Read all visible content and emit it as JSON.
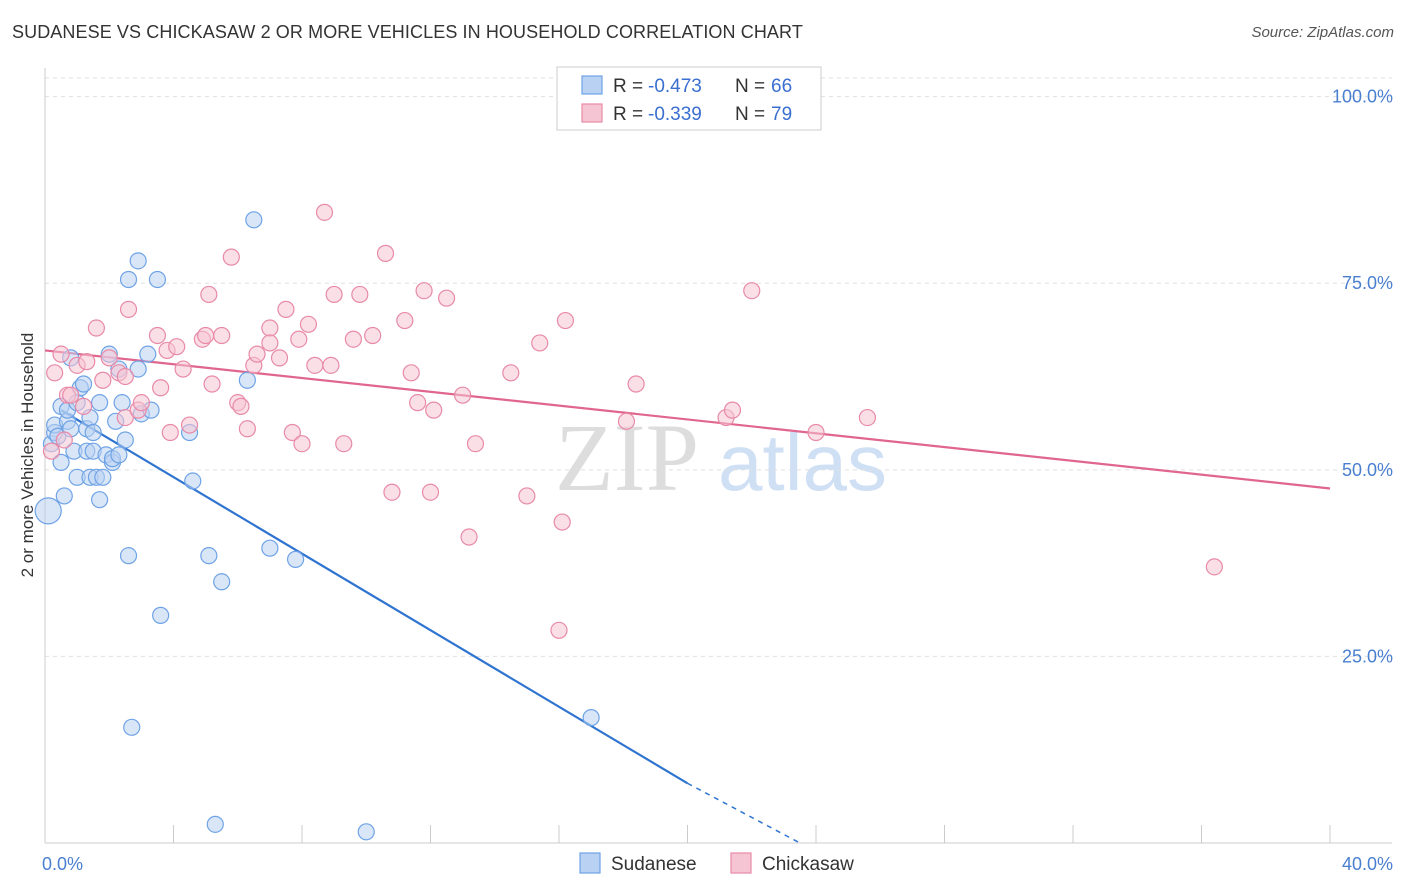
{
  "title": "SUDANESE VS CHICKASAW 2 OR MORE VEHICLES IN HOUSEHOLD CORRELATION CHART",
  "source": "Source: ZipAtlas.com",
  "watermark": {
    "zip": "ZIP",
    "atlas": "atlas"
  },
  "chart_data": {
    "type": "scatter",
    "title": "SUDANESE VS CHICKASAW 2 OR MORE VEHICLES IN HOUSEHOLD CORRELATION CHART",
    "xlabel": "",
    "ylabel": "2 or more Vehicles in Household",
    "xlim": [
      0,
      40
    ],
    "ylim": [
      0,
      102.5
    ],
    "x_tick_labels": [
      {
        "value": 0,
        "label": "0.0%"
      },
      {
        "value": 40,
        "label": "40.0%"
      }
    ],
    "y_tick_labels": [
      {
        "value": 25,
        "label": "25.0%"
      },
      {
        "value": 50,
        "label": "50.0%"
      },
      {
        "value": 75,
        "label": "75.0%"
      },
      {
        "value": 100,
        "label": "100.0%"
      }
    ],
    "legend": [
      {
        "name": "Sudanese",
        "r_label": "R = ",
        "r_value": "-0.473",
        "n_label": "N = ",
        "n_value": "66"
      },
      {
        "name": "Chickasaw",
        "r_label": "R = ",
        "r_value": "-0.339",
        "n_label": "N = ",
        "n_value": "79"
      }
    ],
    "series": [
      {
        "name": "Sudanese",
        "color": "#6fa3e6",
        "fill": "#b9d2f3",
        "line_color": "#2f74d0",
        "trend": {
          "x0": 0.5,
          "y0": 58.0,
          "x1": 20.0,
          "y1": 8.0,
          "dash_to_x": 23.5,
          "dash_to_y": 0.0
        },
        "points": [
          [
            0.1,
            44.5
          ],
          [
            0.2,
            53.5
          ],
          [
            0.3,
            55.0
          ],
          [
            0.3,
            56.0
          ],
          [
            0.4,
            54.5
          ],
          [
            0.5,
            51.0
          ],
          [
            0.5,
            58.5
          ],
          [
            0.6,
            46.5
          ],
          [
            0.7,
            56.5
          ],
          [
            0.7,
            58.0
          ],
          [
            0.8,
            55.5
          ],
          [
            0.8,
            65.0
          ],
          [
            0.9,
            52.5
          ],
          [
            1.0,
            49.0
          ],
          [
            1.0,
            59.0
          ],
          [
            1.1,
            61.0
          ],
          [
            1.2,
            61.5
          ],
          [
            1.3,
            55.5
          ],
          [
            1.3,
            52.5
          ],
          [
            1.4,
            49.0
          ],
          [
            1.4,
            57.0
          ],
          [
            1.5,
            55.0
          ],
          [
            1.5,
            52.5
          ],
          [
            1.6,
            49.0
          ],
          [
            1.7,
            46.0
          ],
          [
            1.7,
            59.0
          ],
          [
            1.8,
            49.0
          ],
          [
            1.9,
            52.0
          ],
          [
            2.0,
            65.5
          ],
          [
            2.1,
            51.0
          ],
          [
            2.1,
            51.5
          ],
          [
            2.2,
            56.5
          ],
          [
            2.3,
            52.0
          ],
          [
            2.3,
            63.5
          ],
          [
            2.4,
            59.0
          ],
          [
            2.5,
            54.0
          ],
          [
            2.6,
            38.5
          ],
          [
            2.6,
            75.5
          ],
          [
            2.7,
            15.5
          ],
          [
            2.9,
            63.5
          ],
          [
            2.9,
            78.0
          ],
          [
            3.0,
            57.5
          ],
          [
            3.2,
            65.5
          ],
          [
            3.3,
            58.0
          ],
          [
            3.5,
            75.5
          ],
          [
            3.6,
            30.5
          ],
          [
            4.5,
            55.0
          ],
          [
            4.6,
            48.5
          ],
          [
            5.1,
            38.5
          ],
          [
            5.3,
            2.5
          ],
          [
            5.5,
            35.0
          ],
          [
            6.3,
            62.0
          ],
          [
            6.5,
            83.5
          ],
          [
            7.0,
            39.5
          ],
          [
            7.8,
            38.0
          ],
          [
            10.0,
            1.5
          ],
          [
            17.0,
            16.8
          ]
        ]
      },
      {
        "name": "Chickasaw",
        "color": "#e88aa8",
        "fill": "#f6c5d4",
        "line_color": "#e0668e",
        "trend": {
          "x0": 0.0,
          "y0": 66.0,
          "x1": 40.0,
          "y1": 47.5
        },
        "points": [
          [
            0.2,
            52.5
          ],
          [
            0.3,
            63.0
          ],
          [
            0.5,
            65.5
          ],
          [
            0.6,
            54.0
          ],
          [
            0.7,
            60.0
          ],
          [
            0.8,
            60.0
          ],
          [
            1.0,
            64.0
          ],
          [
            1.2,
            58.5
          ],
          [
            1.3,
            64.5
          ],
          [
            1.6,
            69.0
          ],
          [
            1.8,
            62.0
          ],
          [
            2.0,
            65.0
          ],
          [
            2.3,
            63.0
          ],
          [
            2.5,
            62.5
          ],
          [
            2.5,
            57.0
          ],
          [
            2.6,
            71.5
          ],
          [
            2.9,
            58.0
          ],
          [
            3.0,
            59.0
          ],
          [
            3.5,
            68.0
          ],
          [
            3.6,
            61.0
          ],
          [
            3.8,
            66.0
          ],
          [
            3.9,
            55.0
          ],
          [
            4.1,
            66.5
          ],
          [
            4.3,
            63.5
          ],
          [
            4.5,
            56.0
          ],
          [
            4.9,
            67.5
          ],
          [
            5.0,
            68.0
          ],
          [
            5.1,
            73.5
          ],
          [
            5.2,
            61.5
          ],
          [
            5.5,
            68.0
          ],
          [
            5.8,
            78.5
          ],
          [
            6.0,
            59.0
          ],
          [
            6.1,
            58.5
          ],
          [
            6.3,
            55.5
          ],
          [
            6.5,
            64.0
          ],
          [
            6.6,
            65.5
          ],
          [
            7.0,
            69.0
          ],
          [
            7.0,
            67.0
          ],
          [
            7.3,
            65.0
          ],
          [
            7.5,
            71.5
          ],
          [
            7.7,
            55.0
          ],
          [
            7.9,
            67.5
          ],
          [
            8.0,
            53.5
          ],
          [
            8.2,
            69.5
          ],
          [
            8.4,
            64.0
          ],
          [
            8.7,
            84.5
          ],
          [
            8.9,
            64.0
          ],
          [
            9.0,
            73.5
          ],
          [
            9.3,
            53.5
          ],
          [
            9.6,
            67.5
          ],
          [
            9.8,
            73.5
          ],
          [
            10.2,
            68.0
          ],
          [
            10.6,
            79.0
          ],
          [
            10.8,
            47.0
          ],
          [
            11.2,
            70.0
          ],
          [
            11.4,
            63.0
          ],
          [
            11.6,
            59.0
          ],
          [
            11.8,
            74.0
          ],
          [
            12.0,
            47.0
          ],
          [
            12.1,
            58.0
          ],
          [
            12.5,
            73.0
          ],
          [
            13.0,
            60.0
          ],
          [
            13.2,
            41.0
          ],
          [
            13.4,
            53.5
          ],
          [
            14.5,
            63.0
          ],
          [
            15.0,
            46.5
          ],
          [
            15.4,
            67.0
          ],
          [
            16.0,
            28.5
          ],
          [
            16.1,
            43.0
          ],
          [
            16.2,
            70.0
          ],
          [
            18.1,
            56.5
          ],
          [
            18.4,
            61.5
          ],
          [
            21.2,
            57.0
          ],
          [
            21.4,
            58.0
          ],
          [
            22.0,
            74.0
          ],
          [
            24.0,
            55.0
          ],
          [
            25.6,
            57.0
          ],
          [
            36.4,
            37.0
          ]
        ]
      }
    ]
  },
  "colors": {
    "axis_tick": "#4a7fd0",
    "grid": "#e0e0e0",
    "axis": "#cccccc"
  }
}
